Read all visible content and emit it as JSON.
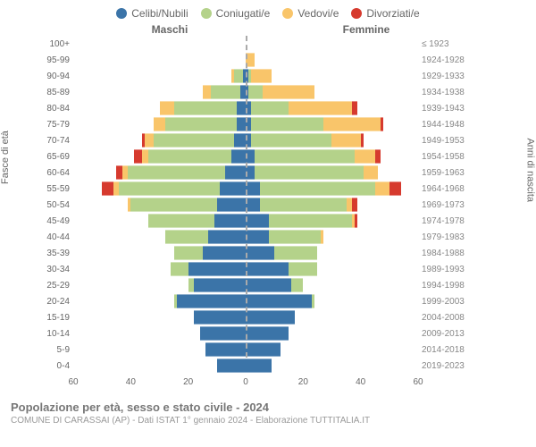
{
  "legend": {
    "items": [
      {
        "label": "Celibi/Nubili",
        "color": "#3b74a8"
      },
      {
        "label": "Coniugati/e",
        "color": "#b4d28a"
      },
      {
        "label": "Vedovi/e",
        "color": "#f9c56a"
      },
      {
        "label": "Divorziati/e",
        "color": "#d63a2e"
      }
    ]
  },
  "headers": {
    "left": "Maschi",
    "right": "Femmine"
  },
  "axis_titles": {
    "left": "Fasce di età",
    "right": "Anni di nascita"
  },
  "x_axis": {
    "ticks": [
      60,
      40,
      20,
      0,
      20,
      40,
      60
    ],
    "max": 60
  },
  "footer": {
    "title": "Popolazione per età, sesso e stato civile - 2024",
    "sub": "COMUNE DI CARASSAI (AP) - Dati ISTAT 1° gennaio 2024 - Elaborazione TUTTITALIA.IT"
  },
  "colors": {
    "single": "#3b74a8",
    "married": "#b4d28a",
    "widowed": "#f9c56a",
    "divorced": "#d63a2e",
    "bg": "#ffffff",
    "grid": "#dddddd"
  },
  "rows": [
    {
      "age": "100+",
      "years": "≤ 1923",
      "m": {
        "s": 0,
        "m": 0,
        "w": 0,
        "d": 0
      },
      "f": {
        "s": 0,
        "m": 0,
        "w": 0,
        "d": 0
      }
    },
    {
      "age": "95-99",
      "years": "1924-1928",
      "m": {
        "s": 0,
        "m": 0,
        "w": 0,
        "d": 0
      },
      "f": {
        "s": 0,
        "m": 0,
        "w": 3,
        "d": 0
      }
    },
    {
      "age": "90-94",
      "years": "1929-1933",
      "m": {
        "s": 1,
        "m": 3,
        "w": 1,
        "d": 0
      },
      "f": {
        "s": 1,
        "m": 1,
        "w": 7,
        "d": 0
      }
    },
    {
      "age": "85-89",
      "years": "1934-1938",
      "m": {
        "s": 2,
        "m": 10,
        "w": 3,
        "d": 0
      },
      "f": {
        "s": 1,
        "m": 5,
        "w": 18,
        "d": 0
      }
    },
    {
      "age": "80-84",
      "years": "1939-1943",
      "m": {
        "s": 3,
        "m": 22,
        "w": 5,
        "d": 0
      },
      "f": {
        "s": 2,
        "m": 13,
        "w": 22,
        "d": 2
      }
    },
    {
      "age": "75-79",
      "years": "1944-1948",
      "m": {
        "s": 3,
        "m": 25,
        "w": 4,
        "d": 0
      },
      "f": {
        "s": 2,
        "m": 25,
        "w": 20,
        "d": 1
      }
    },
    {
      "age": "70-74",
      "years": "1949-1953",
      "m": {
        "s": 4,
        "m": 28,
        "w": 3,
        "d": 1
      },
      "f": {
        "s": 2,
        "m": 28,
        "w": 10,
        "d": 1
      }
    },
    {
      "age": "65-69",
      "years": "1954-1958",
      "m": {
        "s": 5,
        "m": 29,
        "w": 2,
        "d": 3
      },
      "f": {
        "s": 3,
        "m": 35,
        "w": 7,
        "d": 2
      }
    },
    {
      "age": "60-64",
      "years": "1959-1963",
      "m": {
        "s": 7,
        "m": 34,
        "w": 2,
        "d": 2
      },
      "f": {
        "s": 3,
        "m": 38,
        "w": 5,
        "d": 0
      }
    },
    {
      "age": "55-59",
      "years": "1964-1968",
      "m": {
        "s": 9,
        "m": 35,
        "w": 2,
        "d": 4
      },
      "f": {
        "s": 5,
        "m": 40,
        "w": 5,
        "d": 4
      }
    },
    {
      "age": "50-54",
      "years": "1969-1973",
      "m": {
        "s": 10,
        "m": 30,
        "w": 1,
        "d": 0
      },
      "f": {
        "s": 5,
        "m": 30,
        "w": 2,
        "d": 2
      }
    },
    {
      "age": "45-49",
      "years": "1974-1978",
      "m": {
        "s": 11,
        "m": 23,
        "w": 0,
        "d": 0
      },
      "f": {
        "s": 8,
        "m": 29,
        "w": 1,
        "d": 1
      }
    },
    {
      "age": "40-44",
      "years": "1979-1983",
      "m": {
        "s": 13,
        "m": 15,
        "w": 0,
        "d": 0
      },
      "f": {
        "s": 8,
        "m": 18,
        "w": 1,
        "d": 0
      }
    },
    {
      "age": "35-39",
      "years": "1984-1988",
      "m": {
        "s": 15,
        "m": 10,
        "w": 0,
        "d": 0
      },
      "f": {
        "s": 10,
        "m": 15,
        "w": 0,
        "d": 0
      }
    },
    {
      "age": "30-34",
      "years": "1989-1993",
      "m": {
        "s": 20,
        "m": 6,
        "w": 0,
        "d": 0
      },
      "f": {
        "s": 15,
        "m": 10,
        "w": 0,
        "d": 0
      }
    },
    {
      "age": "25-29",
      "years": "1994-1998",
      "m": {
        "s": 18,
        "m": 2,
        "w": 0,
        "d": 0
      },
      "f": {
        "s": 16,
        "m": 4,
        "w": 0,
        "d": 0
      }
    },
    {
      "age": "20-24",
      "years": "1999-2003",
      "m": {
        "s": 24,
        "m": 1,
        "w": 0,
        "d": 0
      },
      "f": {
        "s": 23,
        "m": 1,
        "w": 0,
        "d": 0
      }
    },
    {
      "age": "15-19",
      "years": "2004-2008",
      "m": {
        "s": 18,
        "m": 0,
        "w": 0,
        "d": 0
      },
      "f": {
        "s": 17,
        "m": 0,
        "w": 0,
        "d": 0
      }
    },
    {
      "age": "10-14",
      "years": "2009-2013",
      "m": {
        "s": 16,
        "m": 0,
        "w": 0,
        "d": 0
      },
      "f": {
        "s": 15,
        "m": 0,
        "w": 0,
        "d": 0
      }
    },
    {
      "age": "5-9",
      "years": "2014-2018",
      "m": {
        "s": 14,
        "m": 0,
        "w": 0,
        "d": 0
      },
      "f": {
        "s": 12,
        "m": 0,
        "w": 0,
        "d": 0
      }
    },
    {
      "age": "0-4",
      "years": "2019-2023",
      "m": {
        "s": 10,
        "m": 0,
        "w": 0,
        "d": 0
      },
      "f": {
        "s": 9,
        "m": 0,
        "w": 0,
        "d": 0
      }
    }
  ]
}
